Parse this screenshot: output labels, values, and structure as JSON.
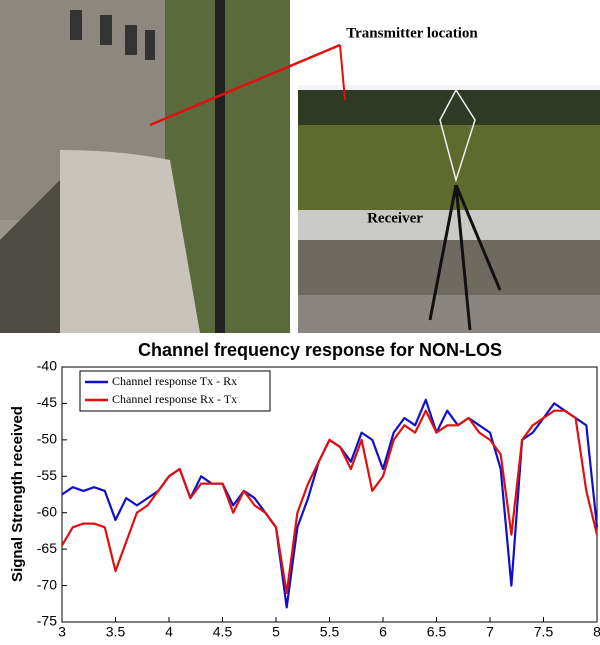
{
  "chart_data": {
    "type": "line",
    "title": "Channel frequency response for NON-LOS",
    "ylabel": "Signal Strength received",
    "annotations": [
      "Transmitter location",
      "Receiver"
    ],
    "x": [
      3.0,
      3.1,
      3.2,
      3.3,
      3.4,
      3.5,
      3.6,
      3.7,
      3.8,
      3.9,
      4.0,
      4.1,
      4.2,
      4.3,
      4.4,
      4.5,
      4.6,
      4.7,
      4.8,
      4.9,
      5.0,
      5.1,
      5.2,
      5.3,
      5.4,
      5.5,
      5.6,
      5.7,
      5.8,
      5.9,
      6.0,
      6.1,
      6.2,
      6.3,
      6.4,
      6.5,
      6.6,
      6.7,
      6.8,
      6.9,
      7.0,
      7.1,
      7.2,
      7.3,
      7.4,
      7.5,
      7.6,
      7.7,
      7.8,
      7.9,
      8.0
    ],
    "series": [
      {
        "name": "Channel response Tx - Rx",
        "color": "#1010c8",
        "values": [
          -57.5,
          -56.5,
          -57,
          -56.5,
          -57,
          -61,
          -58,
          -59,
          -58,
          -57,
          -55,
          -54,
          -58,
          -55,
          -56,
          -56,
          -59,
          -57,
          -58,
          -60,
          -62,
          -73,
          -62,
          -58,
          -53,
          -50,
          -51,
          -53,
          -49,
          -50,
          -54,
          -49,
          -47,
          -48,
          -44.5,
          -49,
          -46,
          -48,
          -47,
          -48,
          -49,
          -54,
          -70,
          -50,
          -49,
          -47,
          -45,
          -46,
          -47,
          -48,
          -62
        ]
      },
      {
        "name": "Channel response Rx - Tx",
        "color": "#e01010",
        "values": [
          -64.5,
          -62,
          -61.5,
          -61.5,
          -62,
          -68,
          -64,
          -60,
          -59,
          -57,
          -55,
          -54,
          -58,
          -56,
          -56,
          -56,
          -60,
          -57,
          -59,
          -60,
          -62,
          -71,
          -60,
          -56,
          -53,
          -50,
          -51,
          -54,
          -50,
          -57,
          -55,
          -50,
          -48,
          -49,
          -46,
          -49,
          -48,
          -48,
          -47,
          -49,
          -50,
          -52,
          -63,
          -50,
          -48,
          -47,
          -46,
          -46,
          -47,
          -57,
          -63
        ]
      }
    ],
    "xlim": [
      3,
      8
    ],
    "xticks": [
      3,
      3.5,
      4,
      4.5,
      5,
      5.5,
      6,
      6.5,
      7,
      7.5,
      8
    ],
    "ylim": [
      -75,
      -40
    ],
    "yticks": [
      -75,
      -70,
      -65,
      -60,
      -55,
      -50,
      -45,
      -40
    ],
    "grid": false,
    "legend": "top-left"
  }
}
